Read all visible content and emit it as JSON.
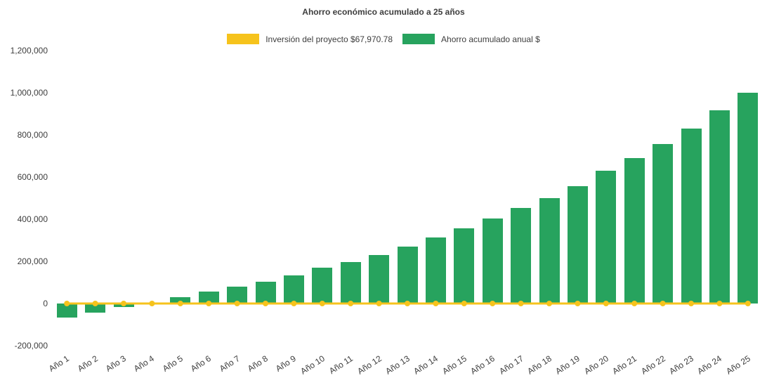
{
  "chart_data": {
    "type": "bar",
    "title": "Ahorro económico acumulado a 25 años",
    "categories": [
      "Año 1",
      "Año 2",
      "Año 3",
      "Año 4",
      "Año 5",
      "Año 6",
      "Año 7",
      "Año 8",
      "Año 9",
      "Año 10",
      "Año 11",
      "Año 12",
      "Año 13",
      "Año 14",
      "Año 15",
      "Año 16",
      "Año 17",
      "Año 18",
      "Año 19",
      "Año 20",
      "Año 21",
      "Año 22",
      "Año 23",
      "Año 24",
      "Año 25"
    ],
    "series": [
      {
        "name": "Inversión del proyecto $67,970.78",
        "type": "line",
        "color": "#f6c31c",
        "values": [
          0,
          0,
          0,
          0,
          0,
          0,
          0,
          0,
          0,
          0,
          0,
          0,
          0,
          0,
          0,
          0,
          0,
          0,
          0,
          0,
          0,
          0,
          0,
          0,
          0
        ]
      },
      {
        "name": "Ahorro acumulado anual $",
        "type": "bar",
        "color": "#27a35e",
        "values": [
          -65000,
          -43000,
          -17000,
          4000,
          30000,
          57000,
          80000,
          103000,
          133000,
          170000,
          197000,
          230000,
          270000,
          313000,
          357000,
          403000,
          453000,
          500000,
          557000,
          630000,
          690000,
          757000,
          830000,
          917000,
          1000000
        ]
      }
    ],
    "xlabel": "",
    "ylabel": "",
    "ylim": [
      -200000,
      1200000
    ],
    "yticks": [
      -200000,
      0,
      200000,
      400000,
      600000,
      800000,
      1000000,
      1200000
    ],
    "grid": false,
    "legend_position": "top"
  }
}
